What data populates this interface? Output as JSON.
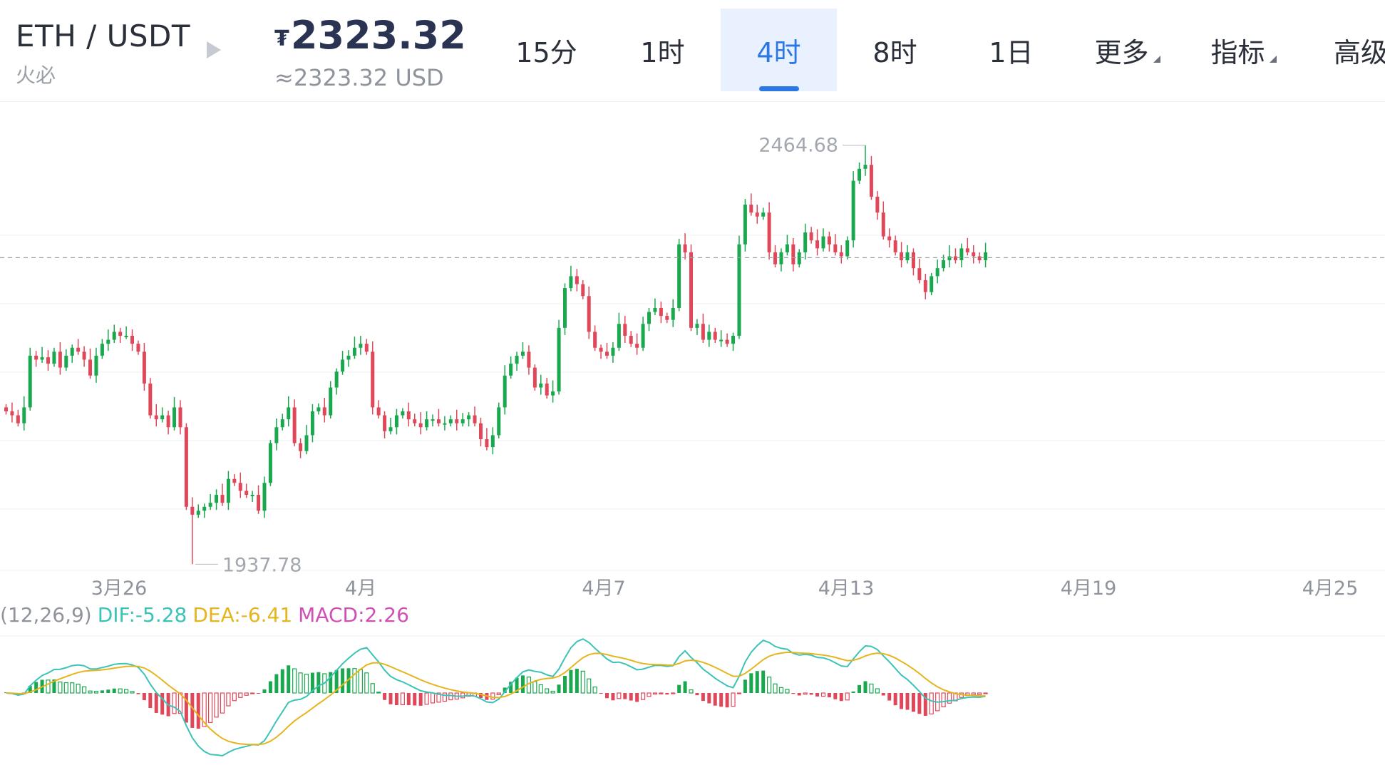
{
  "header": {
    "pair": "ETH / USDT",
    "exchange": "火必",
    "price_currency_symbol": "₮",
    "price": "2323.32",
    "price_usd": "≈2323.32 USD",
    "tabs": [
      {
        "label": "15分",
        "active": false,
        "dropdown": false
      },
      {
        "label": "1时",
        "active": false,
        "dropdown": false
      },
      {
        "label": "4时",
        "active": true,
        "dropdown": false
      },
      {
        "label": "8时",
        "active": false,
        "dropdown": false
      },
      {
        "label": "1日",
        "active": false,
        "dropdown": false
      },
      {
        "label": "更多",
        "active": false,
        "dropdown": true
      },
      {
        "label": "指标",
        "active": false,
        "dropdown": true
      },
      {
        "label": "高级",
        "active": false,
        "dropdown": false
      }
    ]
  },
  "colors": {
    "up": "#1aa84f",
    "down": "#e0485a",
    "dif": "#3cc3b8",
    "dea": "#e6b51e",
    "macd": "#d04fb7",
    "accent": "#2b78e4"
  },
  "chart_data": {
    "type": "candlestick",
    "interval": "4时",
    "x_tick_labels": [
      "3月26",
      "4月",
      "4月7",
      "4月13",
      "4月19",
      "4月25"
    ],
    "high_label": "2464.68",
    "low_label": "1937.78",
    "last_price": 2323.32,
    "y_range": [
      1930,
      2520
    ],
    "candles_close": [
      2130,
      2125,
      2115,
      2135,
      2200,
      2195,
      2198,
      2190,
      2205,
      2185,
      2200,
      2210,
      2205,
      2195,
      2175,
      2200,
      2215,
      2220,
      2230,
      2225,
      2225,
      2215,
      2205,
      2165,
      2125,
      2120,
      2125,
      2110,
      2135,
      2110,
      2010,
      2000,
      2005,
      2010,
      2015,
      2025,
      2015,
      2045,
      2040,
      2030,
      2025,
      2025,
      2005,
      2040,
      2090,
      2110,
      2120,
      2135,
      2090,
      2080,
      2100,
      2130,
      2135,
      2125,
      2160,
      2180,
      2195,
      2200,
      2210,
      2215,
      2205,
      2135,
      2125,
      2105,
      2110,
      2125,
      2130,
      2120,
      2115,
      2110,
      2120,
      2120,
      2115,
      2115,
      2120,
      2115,
      2120,
      2125,
      2115,
      2095,
      2085,
      2100,
      2135,
      2175,
      2190,
      2200,
      2205,
      2185,
      2160,
      2165,
      2150,
      2155,
      2235,
      2285,
      2300,
      2290,
      2275,
      2230,
      2210,
      2205,
      2200,
      2210,
      2240,
      2225,
      2215,
      2210,
      2240,
      2255,
      2260,
      2250,
      2245,
      2260,
      2340,
      2330,
      2235,
      2240,
      2220,
      2230,
      2220,
      2220,
      2215,
      2225,
      2340,
      2390,
      2380,
      2375,
      2380,
      2330,
      2315,
      2330,
      2340,
      2315,
      2330,
      2355,
      2345,
      2335,
      2350,
      2340,
      2330,
      2325,
      2345,
      2420,
      2435,
      2440,
      2400,
      2380,
      2350,
      2345,
      2330,
      2320,
      2330,
      2310,
      2295,
      2280,
      2300,
      2310,
      2320,
      2325,
      2320,
      2335,
      2330,
      2325,
      2320,
      2330
    ],
    "macd_legend": {
      "prefix": "(12,26,9)",
      "dif": "DIF:-5.28",
      "dea": "DEA:-6.41",
      "macd": "MACD:2.26"
    }
  }
}
